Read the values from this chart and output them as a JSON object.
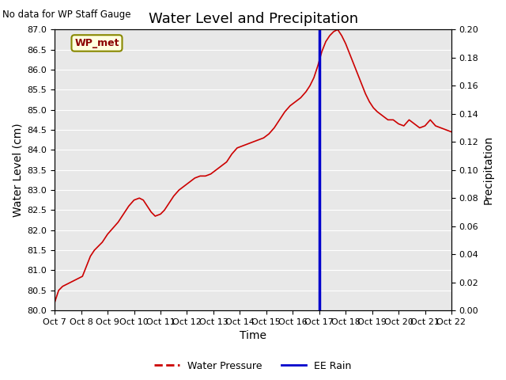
{
  "title": "Water Level and Precipitation",
  "subtitle": "No data for WP Staff Gauge",
  "xlabel": "Time",
  "ylabel_left": "Water Level (cm)",
  "ylabel_right": "Precipitation",
  "legend_label1": "Water Pressure",
  "legend_label2": "EE Rain",
  "legend_box_label": "WP_met",
  "ylim_left": [
    80.0,
    87.0
  ],
  "ylim_right": [
    0.0,
    0.2
  ],
  "yticks_left": [
    80.0,
    80.5,
    81.0,
    81.5,
    82.0,
    82.5,
    83.0,
    83.5,
    84.0,
    84.5,
    85.0,
    85.5,
    86.0,
    86.5,
    87.0
  ],
  "yticks_right": [
    0.0,
    0.02,
    0.04,
    0.06,
    0.08,
    0.1,
    0.12,
    0.14,
    0.16,
    0.18,
    0.2
  ],
  "xtick_labels": [
    "Oct 7",
    "Oct 8",
    "Oct 9",
    "Oct 10",
    "Oct 11",
    "Oct 12",
    "Oct 13",
    "Oct 14",
    "Oct 15",
    "Oct 16",
    "Oct 17",
    "Oct 18",
    "Oct 19",
    "Oct 20",
    "Oct 21",
    "Oct 22"
  ],
  "vline_x": 10.0,
  "bg_color": "#e8e8e8",
  "line_color": "#cc0000",
  "vline_color": "#0000cc",
  "title_fontsize": 13,
  "axis_fontsize": 10,
  "tick_fontsize": 8,
  "water_level_x": [
    0.0,
    0.15,
    0.3,
    0.45,
    0.6,
    0.75,
    0.9,
    1.05,
    1.2,
    1.35,
    1.5,
    1.65,
    1.8,
    2.0,
    2.2,
    2.4,
    2.6,
    2.8,
    3.0,
    3.2,
    3.35,
    3.5,
    3.65,
    3.8,
    4.0,
    4.15,
    4.3,
    4.5,
    4.7,
    4.9,
    5.1,
    5.3,
    5.5,
    5.7,
    5.9,
    6.1,
    6.3,
    6.5,
    6.7,
    6.9,
    7.1,
    7.3,
    7.5,
    7.7,
    7.9,
    8.1,
    8.3,
    8.5,
    8.7,
    8.9,
    9.1,
    9.3,
    9.5,
    9.65,
    9.8,
    9.95,
    10.1,
    10.25,
    10.4,
    10.55,
    10.7,
    10.85,
    11.0,
    11.15,
    11.3,
    11.45,
    11.6,
    11.75,
    11.9,
    12.05,
    12.2,
    12.4,
    12.6,
    12.8,
    13.0,
    13.2,
    13.4,
    13.6,
    13.8,
    14.0,
    14.2,
    14.4,
    14.6,
    14.8,
    15.0
  ],
  "water_level_y": [
    80.2,
    80.5,
    80.6,
    80.65,
    80.7,
    80.75,
    80.8,
    80.85,
    81.1,
    81.35,
    81.5,
    81.6,
    81.7,
    81.9,
    82.05,
    82.2,
    82.4,
    82.6,
    82.75,
    82.8,
    82.75,
    82.6,
    82.45,
    82.35,
    82.4,
    82.5,
    82.65,
    82.85,
    83.0,
    83.1,
    83.2,
    83.3,
    83.35,
    83.35,
    83.4,
    83.5,
    83.6,
    83.7,
    83.9,
    84.05,
    84.1,
    84.15,
    84.2,
    84.25,
    84.3,
    84.4,
    84.55,
    84.75,
    84.95,
    85.1,
    85.2,
    85.3,
    85.45,
    85.6,
    85.8,
    86.1,
    86.45,
    86.7,
    86.85,
    86.95,
    87.0,
    86.85,
    86.65,
    86.4,
    86.15,
    85.9,
    85.65,
    85.4,
    85.2,
    85.05,
    84.95,
    84.85,
    84.75,
    84.75,
    84.65,
    84.6,
    84.75,
    84.65,
    84.55,
    84.6,
    84.75,
    84.6,
    84.55,
    84.5,
    84.45
  ]
}
